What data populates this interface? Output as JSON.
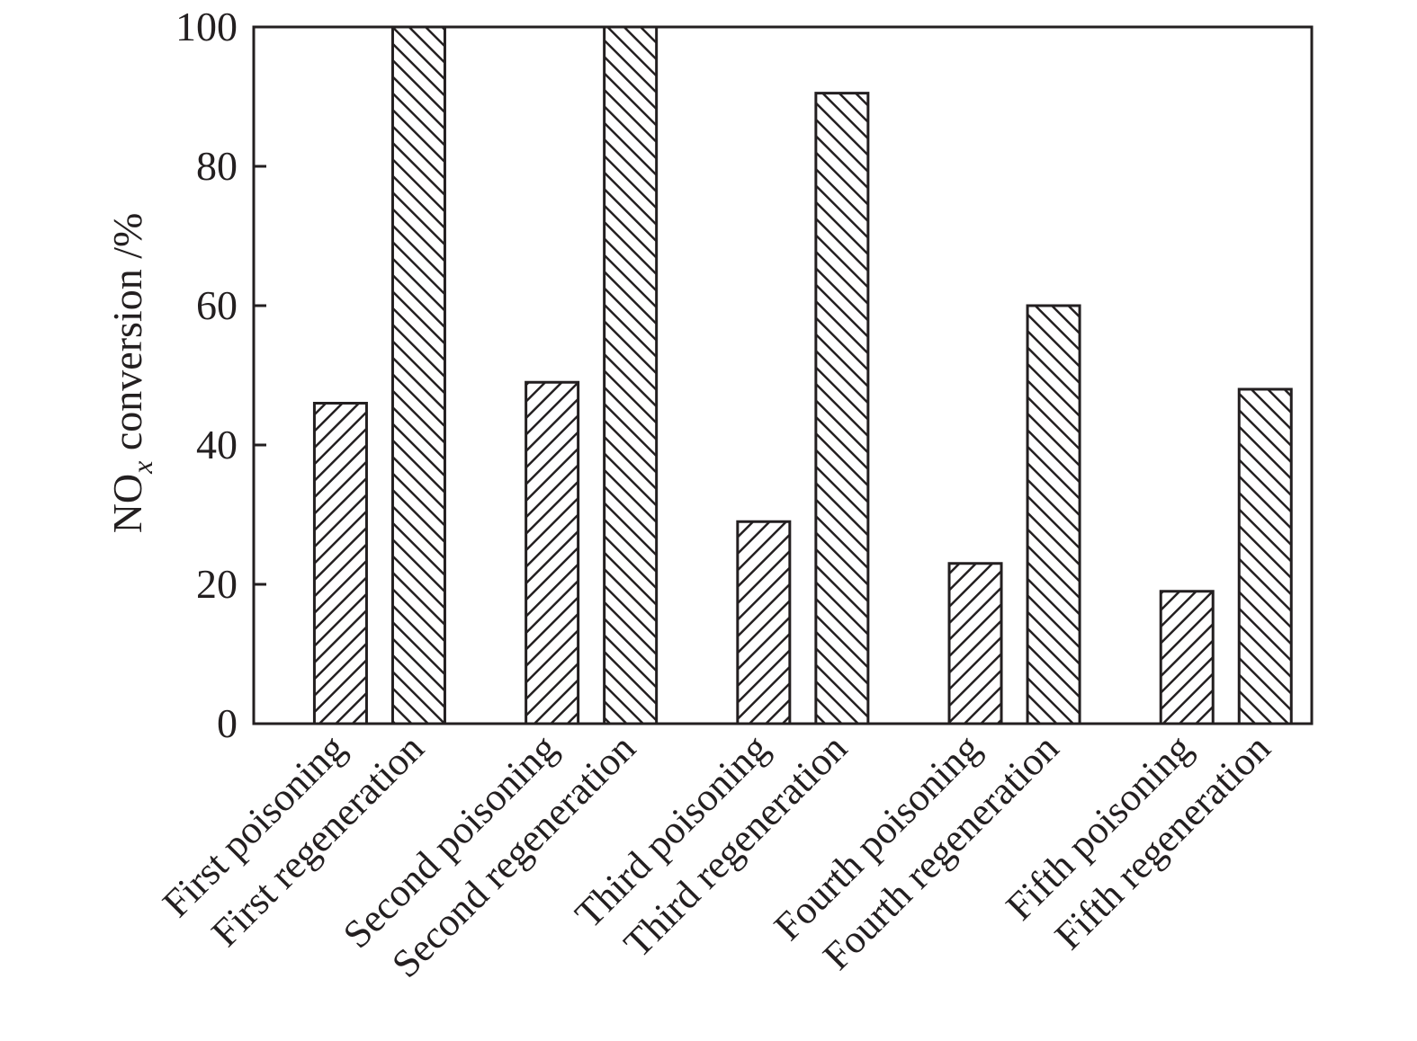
{
  "chart_data": {
    "type": "bar",
    "title": "",
    "xlabel": "",
    "ylabel": {
      "main": "NO",
      "sub": "x",
      "rest": " conversion /%"
    },
    "ylim": [
      0,
      100
    ],
    "yticks": [
      "0",
      "20",
      "40",
      "60",
      "80",
      "100"
    ],
    "categories": [
      "First poisoning",
      "First regeneration",
      "Second poisoning",
      "Second regeneration",
      "Third poisoning",
      "Third regeneration",
      "Fourth poisoning",
      "Fourth regeneration",
      "Fifth poisoning",
      "Fifth regeneration"
    ],
    "values": [
      46,
      100,
      49,
      100,
      29,
      90.5,
      23,
      60,
      19,
      48
    ],
    "kinds": [
      "poisoning",
      "regeneration",
      "poisoning",
      "regeneration",
      "poisoning",
      "regeneration",
      "poisoning",
      "regeneration",
      "poisoning",
      "regeneration"
    ],
    "grid": false,
    "colors": {
      "ink": "#231f20",
      "fill": "#ffffff"
    }
  }
}
